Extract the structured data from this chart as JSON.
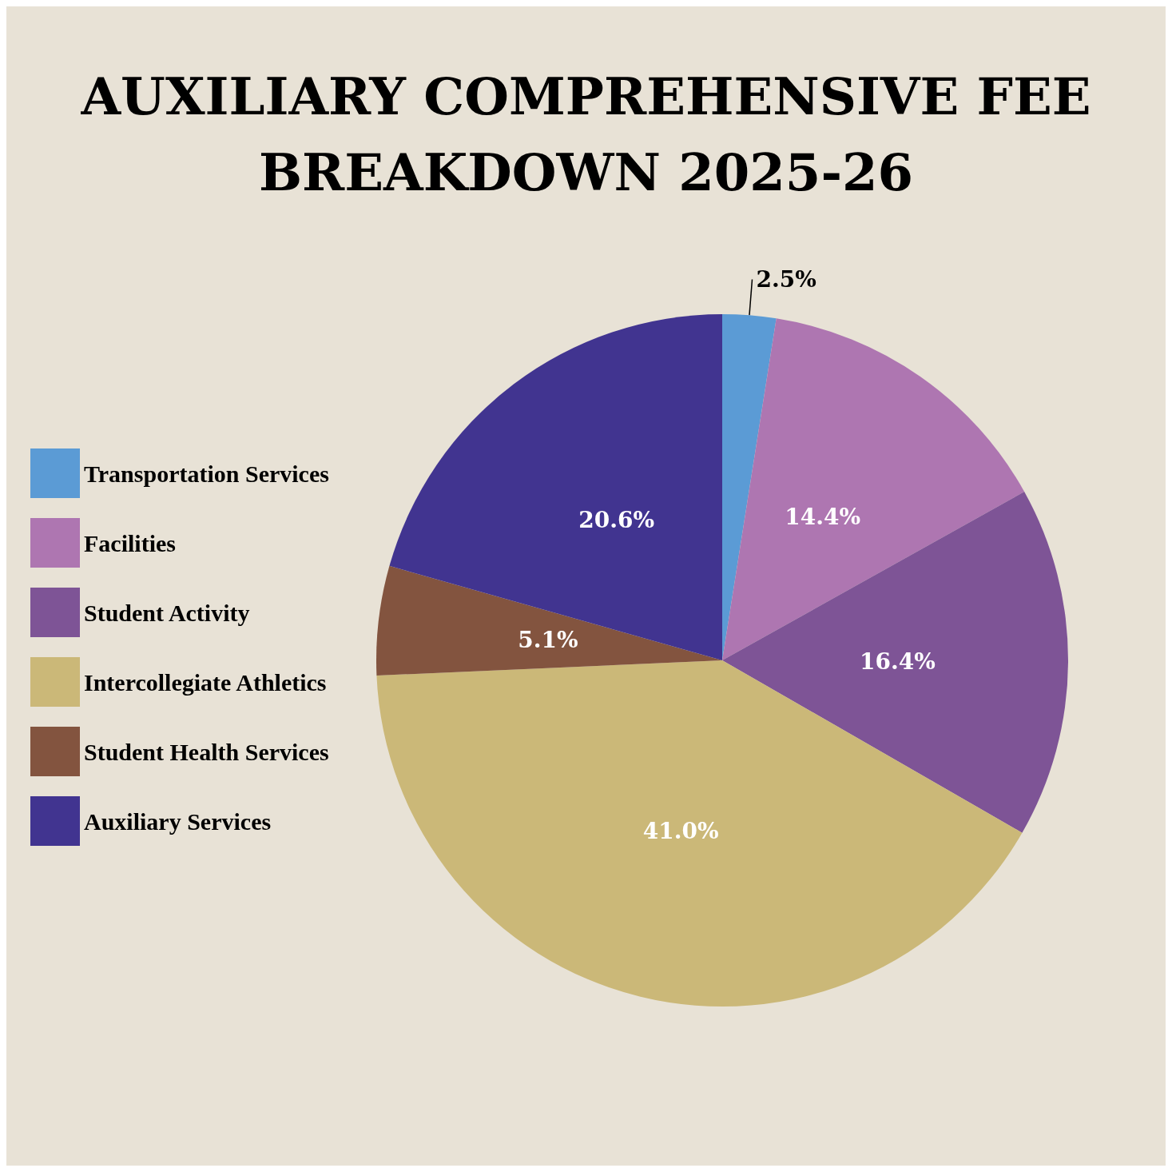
{
  "chart_data": {
    "type": "pie",
    "title": "AUXILIARY COMPREHENSIVE FEE\nBREAKDOWN 2025-26",
    "categories": [
      "Transportation Services",
      "Facilities",
      "Student Activity",
      "Intercollegiate Athletics",
      "Student Health Services",
      "Auxiliary Services"
    ],
    "values": [
      2.5,
      14.4,
      16.4,
      41.0,
      5.1,
      20.6
    ],
    "colors": [
      "#5b9bd5",
      "#ae76b1",
      "#7e5496",
      "#cbb878",
      "#83543f",
      "#413490"
    ],
    "value_labels": [
      "2.5%",
      "14.4%",
      "16.4%",
      "41.0%",
      "5.1%",
      "20.6%"
    ],
    "legend": "left"
  }
}
